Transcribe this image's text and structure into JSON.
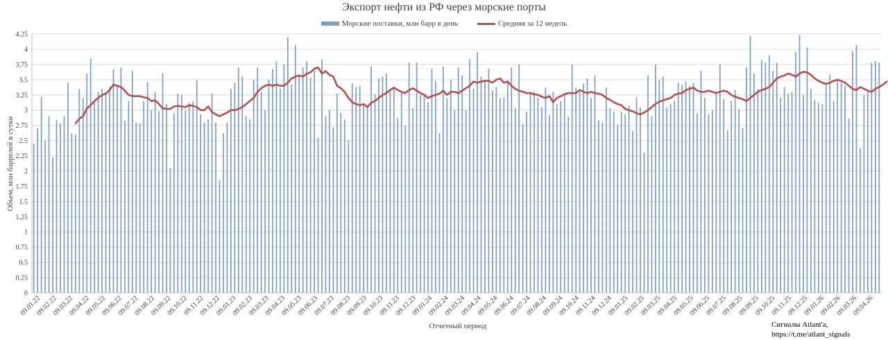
{
  "chart_data": {
    "type": "bar",
    "title": "Экспорт нефти из РФ через морские порты",
    "xlabel": "Отчетный период",
    "ylabel": "Объем, млн баррелей в сутки",
    "ylim": [
      0,
      4.25
    ],
    "yticks": [
      "0",
      "0.25",
      "0.5",
      "0.75",
      "1",
      "1.25",
      "1.5",
      "1.75",
      "2",
      "2.25",
      "2.5",
      "2.75",
      "3",
      "3.25",
      "3.5",
      "3.75",
      "4",
      "4.25"
    ],
    "grid": true,
    "legend_position": "top",
    "colors": {
      "bars": "#7f9fc5",
      "line": "#b5504f",
      "grid": "#d9d9d9",
      "axis": "#bfbfbf"
    },
    "x_tick_labels": [
      "09.01.22",
      "09.02.22",
      "09.03.22",
      "09.04.22",
      "09.05.22",
      "09.06.22",
      "09.07.22",
      "09.08.22",
      "09.09.22",
      "09.10.22",
      "09.11.22",
      "09.12.22",
      "09.01.23",
      "09.02.23",
      "09.03.23",
      "09.04.23",
      "09.05.23",
      "09.06.23",
      "09.07.23",
      "09.08.23",
      "09.09.23",
      "09.10.23",
      "09.11.23",
      "09.12.23",
      "09.01.24",
      "09.02.24",
      "09.03.24",
      "09.04.24",
      "09.05.24",
      "09.06.24",
      "09.07.24",
      "09.08.24",
      "09.09.24",
      "09.10.24",
      "09.11.24",
      "09.12.24",
      "09.01.25",
      "09.02.25",
      "09.03.25",
      "09.04.25",
      "09.05.25",
      "09.06.25",
      "09.07.25",
      "09.08.25",
      "09.09.25",
      "09.10.25",
      "09.11.25",
      "09.12.25",
      "09.01.26",
      "09.02.26",
      "09.03.26",
      "09.04.26"
    ],
    "series": [
      {
        "name": "Морские поставки, млн барр в день",
        "type": "bar",
        "values": [
          2.45,
          2.7,
          3.22,
          2.5,
          2.9,
          2.22,
          2.84,
          2.78,
          2.9,
          3.45,
          2.62,
          2.6,
          3.35,
          3.2,
          3.6,
          3.85,
          3.17,
          3.3,
          3.35,
          3.3,
          3.38,
          3.67,
          3.4,
          3.7,
          2.82,
          3.15,
          3.65,
          2.8,
          2.78,
          3.15,
          3.46,
          3.0,
          3.3,
          2.98,
          3.6,
          3.1,
          2.05,
          2.95,
          3.27,
          3.25,
          3.0,
          3.12,
          3.14,
          3.49,
          2.93,
          2.8,
          2.85,
          3.27,
          2.8,
          1.85,
          2.62,
          2.8,
          3.35,
          3.45,
          3.7,
          3.55,
          2.9,
          2.85,
          3.5,
          3.7,
          3.3,
          3.0,
          3.5,
          3.67,
          3.8,
          3.35,
          3.75,
          4.2,
          3.42,
          4.07,
          3.57,
          3.7,
          3.8,
          3.53,
          3.65,
          2.55,
          3.83,
          2.9,
          3.0,
          2.72,
          3.27,
          2.95,
          2.85,
          2.5,
          3.44,
          3.38,
          3.4,
          3.1,
          3.06,
          3.72,
          3.26,
          3.52,
          3.55,
          3.6,
          3.35,
          3.38,
          2.87,
          3.31,
          2.74,
          3.78,
          3.03,
          3.78,
          3.25,
          3.25,
          3.13,
          3.68,
          3.48,
          2.62,
          3.72,
          3.2,
          3.5,
          3.0,
          3.7,
          3.57,
          3.0,
          3.84,
          3.35,
          3.95,
          3.55,
          3.5,
          3.68,
          3.32,
          3.38,
          3.2,
          3.21,
          3.48,
          3.7,
          3.03,
          3.75,
          2.77,
          2.97,
          3.3,
          3.3,
          3.2,
          3.05,
          3.37,
          2.92,
          3.3,
          3.1,
          3.15,
          3.28,
          2.89,
          3.75,
          3.37,
          3.3,
          3.43,
          3.52,
          3.2,
          3.57,
          2.83,
          2.8,
          3.37,
          3.03,
          2.97,
          2.76,
          2.97,
          2.93,
          3.07,
          2.66,
          3.21,
          3.04,
          2.3,
          3.57,
          2.9,
          3.75,
          3.5,
          3.55,
          3.04,
          3.1,
          3.15,
          3.45,
          3.42,
          3.47,
          3.4,
          3.45,
          2.95,
          3.65,
          3.2,
          2.93,
          3.0,
          3.28,
          3.75,
          3.18,
          2.67,
          3.15,
          3.33,
          3.02,
          2.7,
          3.7,
          4.22,
          3.6,
          3.35,
          3.82,
          3.78,
          3.9,
          3.65,
          3.78,
          3.2,
          3.38,
          3.27,
          3.3,
          3.95,
          4.23,
          3.25,
          4.03,
          3.35,
          3.17,
          3.12,
          3.1,
          3.45,
          3.58,
          3.15,
          3.5,
          3.45,
          3.4,
          2.86,
          3.97,
          4.07,
          2.37,
          3.25,
          3.3,
          3.78,
          3.8,
          3.78
        ]
      },
      {
        "name": "Средняя за 12 недель",
        "type": "line",
        "start_index": 11,
        "values": [
          2.78,
          2.86,
          2.9,
          3.03,
          3.08,
          3.15,
          3.2,
          3.25,
          3.27,
          3.33,
          3.42,
          3.4,
          3.38,
          3.32,
          3.25,
          3.23,
          3.23,
          3.23,
          3.21,
          3.2,
          3.15,
          3.16,
          3.1,
          3.03,
          3.02,
          3.02,
          3.06,
          3.07,
          3.06,
          3.05,
          3.08,
          3.07,
          3.05,
          3.0,
          3.0,
          3.06,
          2.97,
          2.93,
          2.9,
          2.93,
          2.96,
          3.0,
          3.0,
          3.02,
          3.05,
          3.1,
          3.15,
          3.2,
          3.3,
          3.36,
          3.4,
          3.42,
          3.4,
          3.42,
          3.4,
          3.4,
          3.45,
          3.52,
          3.55,
          3.57,
          3.55,
          3.6,
          3.62,
          3.68,
          3.7,
          3.6,
          3.64,
          3.58,
          3.55,
          3.4,
          3.36,
          3.3,
          3.2,
          3.13,
          3.1,
          3.08,
          3.1,
          3.05,
          3.12,
          3.15,
          3.2,
          3.25,
          3.28,
          3.33,
          3.37,
          3.33,
          3.3,
          3.28,
          3.33,
          3.36,
          3.32,
          3.28,
          3.25,
          3.2,
          3.23,
          3.25,
          3.27,
          3.32,
          3.25,
          3.3,
          3.3,
          3.28,
          3.32,
          3.36,
          3.4,
          3.47,
          3.45,
          3.47,
          3.48,
          3.48,
          3.45,
          3.5,
          3.52,
          3.45,
          3.47,
          3.4,
          3.35,
          3.32,
          3.3,
          3.28,
          3.28,
          3.26,
          3.25,
          3.22,
          3.2,
          3.23,
          3.13,
          3.2,
          3.23,
          3.26,
          3.28,
          3.28,
          3.28,
          3.33,
          3.3,
          3.28,
          3.3,
          3.28,
          3.27,
          3.25,
          3.2,
          3.17,
          3.13,
          3.1,
          3.08,
          3.02,
          3.0,
          2.98,
          2.95,
          2.93,
          2.96,
          3.0,
          3.05,
          3.1,
          3.14,
          3.16,
          3.18,
          3.2,
          3.25,
          3.27,
          3.28,
          3.33,
          3.35,
          3.37,
          3.32,
          3.3,
          3.3,
          3.32,
          3.3,
          3.28,
          3.3,
          3.32,
          3.3,
          3.25,
          3.22,
          3.2,
          3.18,
          3.15,
          3.2,
          3.25,
          3.3,
          3.33,
          3.35,
          3.38,
          3.45,
          3.52,
          3.55,
          3.57,
          3.6,
          3.58,
          3.55,
          3.6,
          3.63,
          3.62,
          3.58,
          3.52,
          3.48,
          3.45,
          3.43,
          3.45,
          3.48,
          3.5,
          3.48,
          3.45,
          3.4,
          3.35,
          3.33,
          3.38,
          3.35,
          3.32,
          3.3,
          3.35,
          3.38,
          3.42,
          3.47
        ]
      }
    ]
  },
  "watermark": {
    "line1": "Сигналы Atlant'a,",
    "line2": "https://t.me/atlant_signals"
  }
}
